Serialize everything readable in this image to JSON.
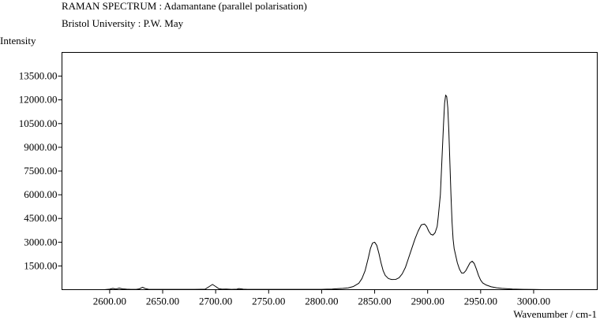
{
  "chart_data": {
    "type": "line",
    "title": "RAMAN SPECTRUM : Adamantane (parallel polarisation)",
    "subtitle": "Bristol University : P.W. May",
    "ylabel": "Intensity",
    "xlabel": "Wavenumber / cm-1",
    "xlim": [
      2555,
      3060
    ],
    "ylim": [
      0,
      15000
    ],
    "x_ticks": [
      2600,
      2650,
      2700,
      2750,
      2800,
      2850,
      2900,
      2950,
      3000
    ],
    "x_tick_labels": [
      "2600.00",
      "2650.00",
      "2700.00",
      "2750.00",
      "2800.00",
      "2850.00",
      "2900.00",
      "2950.00",
      "3000.00"
    ],
    "y_ticks": [
      1500,
      3000,
      4500,
      6000,
      7500,
      9000,
      10500,
      12000,
      13500
    ],
    "y_tick_labels": [
      "1500.00",
      "3000.00",
      "4500.00",
      "6000.00",
      "7500.00",
      "9000.00",
      "10500.00",
      "12000.00",
      "13500.00"
    ],
    "grid": false,
    "series": [
      {
        "color": "#000000",
        "x": [
          2590,
          2595,
          2600,
          2603,
          2606,
          2609,
          2612,
          2616,
          2620,
          2625,
          2628,
          2631,
          2634,
          2637,
          2640,
          2645,
          2650,
          2660,
          2670,
          2680,
          2690,
          2694,
          2697,
          2700,
          2703,
          2706,
          2710,
          2715,
          2720,
          2722,
          2726,
          2730,
          2740,
          2750,
          2760,
          2770,
          2780,
          2790,
          2800,
          2805,
          2810,
          2815,
          2820,
          2825,
          2830,
          2835,
          2838,
          2841,
          2844,
          2846,
          2848,
          2850,
          2852,
          2854,
          2856,
          2858,
          2860,
          2863,
          2866,
          2870,
          2873,
          2876,
          2879,
          2882,
          2885,
          2888,
          2891,
          2894,
          2897,
          2899,
          2901,
          2903,
          2905,
          2907,
          2909,
          2910,
          2912,
          2913,
          2914,
          2915,
          2916,
          2917,
          2918,
          2919,
          2920,
          2921,
          2922,
          2923,
          2924,
          2925,
          2926,
          2928,
          2930,
          2932,
          2934,
          2936,
          2938,
          2940,
          2942,
          2944,
          2946,
          2948,
          2950,
          2952,
          2955,
          2960,
          2965,
          2970,
          2980,
          2990,
          3000,
          3010,
          3020
        ],
        "y": [
          0,
          0,
          30,
          80,
          40,
          100,
          50,
          30,
          20,
          20,
          50,
          150,
          60,
          20,
          20,
          20,
          20,
          20,
          20,
          20,
          30,
          200,
          330,
          200,
          60,
          30,
          40,
          20,
          30,
          70,
          30,
          20,
          20,
          20,
          20,
          20,
          20,
          20,
          20,
          30,
          40,
          60,
          80,
          110,
          200,
          400,
          700,
          1200,
          2000,
          2600,
          2950,
          3000,
          2800,
          2300,
          1700,
          1200,
          900,
          700,
          640,
          650,
          750,
          1000,
          1400,
          2000,
          2600,
          3200,
          3700,
          4100,
          4150,
          4000,
          3700,
          3500,
          3450,
          3600,
          4000,
          4600,
          6000,
          7500,
          9000,
          10500,
          11800,
          12300,
          12200,
          11500,
          10000,
          8000,
          6000,
          4300,
          3200,
          2600,
          2300,
          1700,
          1300,
          1050,
          1050,
          1200,
          1450,
          1700,
          1800,
          1650,
          1300,
          900,
          600,
          420,
          300,
          180,
          120,
          80,
          40,
          20,
          10,
          0,
          0
        ]
      }
    ]
  }
}
